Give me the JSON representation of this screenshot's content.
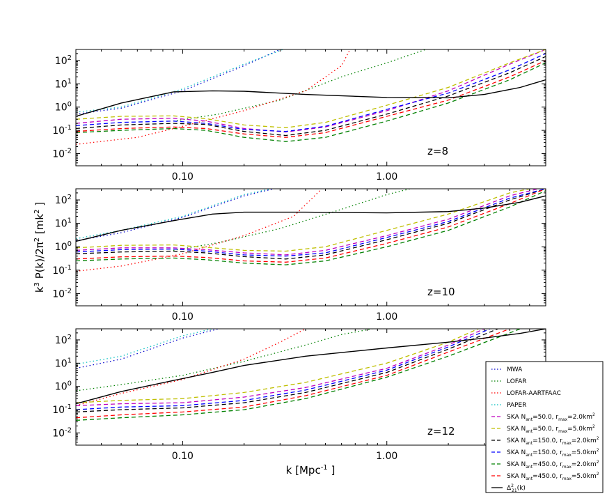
{
  "chart_data": {
    "type": "line",
    "xlabel": "k [Mpc-1]",
    "xlabel_main": "k [Mpc",
    "xlabel_exp": "-1",
    "xlabel_close": "]",
    "ylabel": "k3 P(k)/2π2 [mk2]",
    "xscale": "log",
    "yscale": "log",
    "xlim": [
      0.03,
      6.0
    ],
    "ylim": [
      0.003,
      300
    ],
    "x_ticks": [
      0.1,
      1.0
    ],
    "x_tick_labels": [
      "0.10",
      "1.00"
    ],
    "y_ticks": [
      0.01,
      0.1,
      1,
      10,
      100
    ],
    "y_tick_labels": [
      {
        "base": "10",
        "exp": "-2"
      },
      {
        "base": "10",
        "exp": "-1"
      },
      {
        "base": "10",
        "exp": "0"
      },
      {
        "base": "10",
        "exp": "1"
      },
      {
        "base": "10",
        "exp": "2"
      }
    ],
    "colors": {
      "MWA": "#0000cc",
      "LOFAR": "#008000",
      "LOFAR-AARTFAAC": "#ff0000",
      "PAPER": "#00bfbf",
      "SKA1": "#bf00bf",
      "SKA2": "#bfbf00",
      "SKA3": "#000000",
      "SKA4": "#0000ff",
      "SKA5": "#008000",
      "SKA6": "#ff0000",
      "signal": "#000000"
    },
    "legend": {
      "location": "lower-right",
      "entries": [
        {
          "key": "MWA",
          "label": "MWA",
          "style": "dotted"
        },
        {
          "key": "LOFAR",
          "label": "LOFAR",
          "style": "dotted"
        },
        {
          "key": "LOFAR-AARTFAAC",
          "label": "LOFAR-AARTFAAC",
          "style": "dotted"
        },
        {
          "key": "PAPER",
          "label": "PAPER",
          "style": "dotted"
        },
        {
          "key": "SKA1",
          "label": "SKA Nant=50.0, rmax=2.0km2",
          "p": [
            "SKA N",
            "ant",
            "=50.0, r",
            "max",
            "=2.0km",
            "2"
          ],
          "style": "dashed"
        },
        {
          "key": "SKA2",
          "label": "SKA Nant=50.0, rmax=5.0km2",
          "p": [
            "SKA N",
            "ant",
            "=50.0, r",
            "max",
            "=5.0km",
            "2"
          ],
          "style": "dashed"
        },
        {
          "key": "SKA3",
          "label": "SKA Nant=150.0, rmax=2.0km2",
          "p": [
            "SKA N",
            "ant",
            "=150.0, r",
            "max",
            "=2.0km",
            "2"
          ],
          "style": "dashed"
        },
        {
          "key": "SKA4",
          "label": "SKA Nant=150.0, rmax=5.0km2",
          "p": [
            "SKA N",
            "ant",
            "=150.0, r",
            "max",
            "=5.0km",
            "2"
          ],
          "style": "dashed"
        },
        {
          "key": "SKA5",
          "label": "SKA Nant=450.0, rmax=2.0km2",
          "p": [
            "SKA N",
            "ant",
            "=450.0, r",
            "max",
            "=2.0km",
            "2"
          ],
          "style": "dashed"
        },
        {
          "key": "SKA6",
          "label": "SKA Nant=450.0, rmax=5.0km2",
          "p": [
            "SKA N",
            "ant",
            "=450.0, r",
            "max",
            "=5.0km",
            "2"
          ],
          "style": "dashed"
        },
        {
          "key": "signal",
          "label": "Δ221(k)",
          "p": [
            "Δ",
            "21",
            "(k)",
            "2"
          ],
          "style": "solid"
        }
      ]
    },
    "panels": [
      {
        "annotation": "z=8",
        "series": {
          "MWA": {
            "x": [
              0.03,
              0.05,
              0.1,
              0.2,
              0.3
            ],
            "y": [
              0.5,
              0.9,
              5,
              60,
              300
            ]
          },
          "LOFAR": {
            "x": [
              0.09,
              0.15,
              0.3,
              0.6,
              1.0,
              1.55
            ],
            "y": [
              0.25,
              0.5,
              2,
              20,
              80,
              300
            ]
          },
          "LOFAR-AARTFAAC": {
            "x": [
              0.03,
              0.06,
              0.1,
              0.2,
              0.4,
              0.6,
              0.66
            ],
            "y": [
              0.025,
              0.05,
              0.15,
              0.7,
              5,
              60,
              300
            ]
          },
          "PAPER": {
            "x": [
              0.03,
              0.05,
              0.1,
              0.2,
              0.31
            ],
            "y": [
              0.6,
              1.0,
              6,
              70,
              300
            ]
          },
          "SKA1": {
            "x": [
              0.03,
              0.05,
              0.09,
              0.13,
              0.2,
              0.32,
              0.5,
              1.0,
              2.0,
              4.0,
              6.0
            ],
            "y": [
              0.2,
              0.3,
              0.33,
              0.25,
              0.12,
              0.085,
              0.14,
              0.7,
              5,
              70,
              300
            ]
          },
          "SKA2": {
            "x": [
              0.03,
              0.05,
              0.09,
              0.13,
              0.2,
              0.32,
              0.5,
              1.0,
              2.0,
              4.0,
              6.0
            ],
            "y": [
              0.3,
              0.4,
              0.42,
              0.32,
              0.17,
              0.13,
              0.22,
              1.2,
              7,
              80,
              300
            ]
          },
          "SKA3": {
            "x": [
              0.03,
              0.05,
              0.09,
              0.13,
              0.2,
              0.32,
              0.5,
              1.0,
              2.0,
              4.0,
              6.0
            ],
            "y": [
              0.12,
              0.17,
              0.2,
              0.18,
              0.09,
              0.06,
              0.1,
              0.5,
              3,
              30,
              150
            ]
          },
          "SKA4": {
            "x": [
              0.03,
              0.05,
              0.09,
              0.13,
              0.2,
              0.32,
              0.5,
              1.0,
              2.0,
              4.0,
              6.0
            ],
            "y": [
              0.16,
              0.22,
              0.25,
              0.2,
              0.11,
              0.09,
              0.15,
              0.8,
              4,
              40,
              200
            ]
          },
          "SKA5": {
            "x": [
              0.03,
              0.05,
              0.09,
              0.13,
              0.2,
              0.32,
              0.5,
              1.0,
              2.0,
              4.0,
              6.0
            ],
            "y": [
              0.08,
              0.1,
              0.12,
              0.1,
              0.05,
              0.033,
              0.05,
              0.25,
              1.5,
              15,
              80
            ]
          },
          "SKA6": {
            "x": [
              0.03,
              0.05,
              0.09,
              0.13,
              0.2,
              0.32,
              0.5,
              1.0,
              2.0,
              4.0,
              6.0
            ],
            "y": [
              0.09,
              0.12,
              0.14,
              0.12,
              0.07,
              0.05,
              0.08,
              0.4,
              2,
              20,
              100
            ]
          },
          "signal": {
            "x": [
              0.03,
              0.05,
              0.09,
              0.14,
              0.2,
              0.4,
              1.0,
              2.0,
              3.0,
              4.5,
              6.0
            ],
            "y": [
              0.4,
              1.5,
              4.5,
              5,
              4.8,
              3.5,
              2.6,
              2.5,
              3.5,
              7,
              15
            ]
          }
        }
      },
      {
        "annotation": "z=10",
        "series": {
          "MWA": {
            "x": [
              0.03,
              0.05,
              0.1,
              0.2,
              0.28
            ],
            "y": [
              1.8,
              4,
              18,
              150,
              300
            ]
          },
          "LOFAR": {
            "x": [
              0.09,
              0.15,
              0.3,
              0.6,
              1.0,
              1.3
            ],
            "y": [
              0.7,
              1.5,
              6,
              40,
              170,
              300
            ]
          },
          "LOFAR-AARTFAAC": {
            "x": [
              0.03,
              0.05,
              0.1,
              0.2,
              0.35,
              0.48
            ],
            "y": [
              0.09,
              0.15,
              0.5,
              3,
              20,
              300
            ]
          },
          "PAPER": {
            "x": [
              0.03,
              0.05,
              0.1,
              0.2,
              0.27
            ],
            "y": [
              2.2,
              5,
              20,
              170,
              300
            ]
          },
          "SKA1": {
            "x": [
              0.03,
              0.05,
              0.09,
              0.13,
              0.2,
              0.32,
              0.5,
              1.0,
              2.0,
              4.0,
              5.5
            ],
            "y": [
              0.7,
              0.9,
              0.9,
              0.75,
              0.55,
              0.45,
              0.7,
              3,
              15,
              150,
              300
            ]
          },
          "SKA2": {
            "x": [
              0.03,
              0.05,
              0.09,
              0.13,
              0.2,
              0.32,
              0.5,
              1.0,
              2.0,
              4.0,
              5.0
            ],
            "y": [
              0.9,
              1.15,
              1.2,
              0.95,
              0.7,
              0.65,
              1.0,
              5,
              25,
              200,
              300
            ]
          },
          "SKA3": {
            "x": [
              0.03,
              0.05,
              0.09,
              0.13,
              0.2,
              0.32,
              0.5,
              1.0,
              2.0,
              4.0,
              6.0
            ],
            "y": [
              0.5,
              0.6,
              0.65,
              0.55,
              0.38,
              0.3,
              0.45,
              2,
              10,
              100,
              300
            ]
          },
          "SKA4": {
            "x": [
              0.03,
              0.05,
              0.09,
              0.13,
              0.2,
              0.32,
              0.5,
              1.0,
              2.0,
              4.0,
              6.0
            ],
            "y": [
              0.6,
              0.75,
              0.8,
              0.65,
              0.45,
              0.4,
              0.55,
              2.5,
              12,
              120,
              300
            ]
          },
          "SKA5": {
            "x": [
              0.03,
              0.05,
              0.09,
              0.13,
              0.2,
              0.32,
              0.5,
              1.0,
              2.0,
              4.0,
              6.0
            ],
            "y": [
              0.25,
              0.3,
              0.33,
              0.28,
              0.2,
              0.17,
              0.25,
              1.0,
              5,
              50,
              250
            ]
          },
          "SKA6": {
            "x": [
              0.03,
              0.05,
              0.09,
              0.13,
              0.2,
              0.32,
              0.5,
              1.0,
              2.0,
              4.0,
              6.0
            ],
            "y": [
              0.3,
              0.37,
              0.4,
              0.35,
              0.25,
              0.22,
              0.33,
              1.4,
              7,
              70,
              300
            ]
          },
          "signal": {
            "x": [
              0.03,
              0.05,
              0.09,
              0.14,
              0.2,
              0.4,
              1.0,
              2.0,
              3.0,
              4.5,
              6.0
            ],
            "y": [
              1.7,
              5,
              13,
              25,
              30,
              30,
              28,
              32,
              45,
              80,
              150
            ]
          }
        }
      },
      {
        "annotation": "z=12",
        "series": {
          "MWA": {
            "x": [
              0.03,
              0.05,
              0.1,
              0.15
            ],
            "y": [
              6,
              15,
              120,
              300
            ]
          },
          "LOFAR": {
            "x": [
              0.03,
              0.05,
              0.1,
              0.2,
              0.4,
              0.6,
              0.85
            ],
            "y": [
              0.65,
              1.2,
              3,
              12,
              60,
              170,
              300
            ]
          },
          "LOFAR-AARTFAAC": {
            "x": [
              0.03,
              0.05,
              0.1,
              0.2,
              0.3,
              0.4
            ],
            "y": [
              0.15,
              0.5,
              2,
              15,
              80,
              300
            ]
          },
          "PAPER": {
            "x": [
              0.03,
              0.05,
              0.1,
              0.14
            ],
            "y": [
              9,
              20,
              150,
              300
            ]
          },
          "SKA1": {
            "x": [
              0.03,
              0.05,
              0.1,
              0.2,
              0.4,
              1.0,
              2.0,
              3.0
            ],
            "y": [
              0.15,
              0.18,
              0.2,
              0.35,
              0.9,
              6,
              60,
              300
            ]
          },
          "SKA2": {
            "x": [
              0.03,
              0.05,
              0.1,
              0.2,
              0.4,
              1.0,
              2.0,
              2.8
            ],
            "y": [
              0.2,
              0.25,
              0.3,
              0.55,
              1.5,
              10,
              80,
              300
            ]
          },
          "SKA3": {
            "x": [
              0.03,
              0.05,
              0.1,
              0.2,
              0.4,
              1.0,
              2.0,
              3.5
            ],
            "y": [
              0.08,
              0.1,
              0.12,
              0.2,
              0.55,
              4,
              40,
              300
            ]
          },
          "SKA4": {
            "x": [
              0.03,
              0.05,
              0.1,
              0.2,
              0.4,
              1.0,
              2.0,
              3.2
            ],
            "y": [
              0.1,
              0.13,
              0.15,
              0.25,
              0.7,
              5,
              50,
              300
            ]
          },
          "SKA5": {
            "x": [
              0.03,
              0.05,
              0.1,
              0.2,
              0.4,
              1.0,
              2.0,
              4.0,
              4.5
            ],
            "y": [
              0.035,
              0.045,
              0.06,
              0.1,
              0.3,
              2.5,
              20,
              200,
              300
            ]
          },
          "SKA6": {
            "x": [
              0.03,
              0.05,
              0.1,
              0.2,
              0.4,
              1.0,
              2.0,
              4.0
            ],
            "y": [
              0.045,
              0.06,
              0.08,
              0.13,
              0.4,
              3,
              30,
              300
            ]
          },
          "signal": {
            "x": [
              0.03,
              0.05,
              0.09,
              0.14,
              0.2,
              0.4,
              1.0,
              2.0,
              3.0,
              4.5,
              6.0
            ],
            "y": [
              0.18,
              0.6,
              1.8,
              4,
              8,
              20,
              45,
              80,
              120,
              190,
              300
            ]
          }
        }
      }
    ]
  }
}
